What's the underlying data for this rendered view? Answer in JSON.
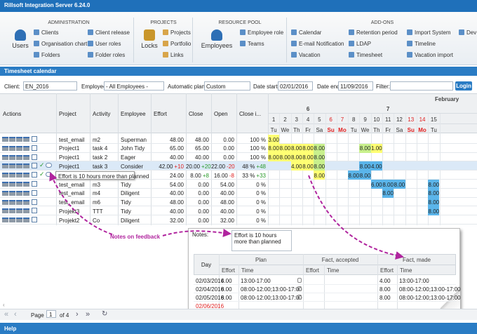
{
  "window_title": "Rillsoft Integration Server 6.24.0",
  "ribbon": [
    {
      "title": "ADMINISTRATION",
      "big": "Users",
      "columns": [
        [
          "Clients",
          "Organisation chart",
          "Folders"
        ],
        [
          "Client release",
          "User roles",
          "Folder roles"
        ]
      ]
    },
    {
      "title": "PROJECTS",
      "big": "Locks",
      "columns": [
        [
          "Projects",
          "Portfolio",
          "Links"
        ]
      ]
    },
    {
      "title": "RESOURCE POOL",
      "big": "Employees",
      "columns": [
        [
          "Employee role",
          "Teams"
        ]
      ]
    },
    {
      "title": "ADD-ONS",
      "columns": [
        [
          "Calendar",
          "E-mail Notification",
          "Vacation"
        ],
        [
          "Retention period",
          "LDAP",
          "Timesheet"
        ],
        [
          "Import System",
          "Timeline",
          "Vacation import"
        ],
        [
          "Dev"
        ]
      ]
    }
  ],
  "section_title": "Timesheet calendar",
  "filters": {
    "client_label": "Client:",
    "client": "EN_2016",
    "employee_label": "Employee:",
    "employee": "- All Employees -",
    "plant_label": "Automatic plant:",
    "plant": "Custom",
    "start_label": "Date start:",
    "start": "02/01/2016",
    "end_label": "Date end:",
    "end": "11/09/2016",
    "filter_label": "Filter:",
    "button": "Login"
  },
  "table": {
    "columns": [
      "Actions",
      "Project",
      "Activity",
      "Employee",
      "Effort",
      "Close",
      "Open",
      "Close i..."
    ],
    "month": "February",
    "weeks": [
      {
        "label": "6",
        "from": 1,
        "to": 7
      },
      {
        "label": "7",
        "from": 8,
        "to": 14
      }
    ],
    "days": [
      {
        "day": "1",
        "weekday": "Tu"
      },
      {
        "day": "2",
        "weekday": "We"
      },
      {
        "day": "3",
        "weekday": "Th"
      },
      {
        "day": "4",
        "weekday": "Fr"
      },
      {
        "day": "5",
        "weekday": "Sa"
      },
      {
        "day": "6",
        "weekday": "Su",
        "color": "#e02020"
      },
      {
        "day": "7",
        "weekday": "Mo",
        "color": "#e02020"
      },
      {
        "day": "8",
        "weekday": "Tu"
      },
      {
        "day": "9",
        "weekday": "We"
      },
      {
        "day": "10",
        "weekday": "Th"
      },
      {
        "day": "11",
        "weekday": "Fr"
      },
      {
        "day": "12",
        "weekday": "Sa"
      },
      {
        "day": "13",
        "weekday": "Su",
        "color": "#e02020"
      },
      {
        "day": "14",
        "weekday": "Mo",
        "color": "#e02020"
      },
      {
        "day": "15",
        "weekday": "Tu"
      }
    ],
    "rows": [
      {
        "project": "test_email",
        "activity": "m2",
        "employee": "Superman",
        "effort": "48.00",
        "close": "48.00",
        "open": "0.00",
        "closed": "100 %",
        "calendar": [
          {
            "text": "3.00",
            "color": "#ffff73"
          },
          null,
          null,
          null,
          null,
          null,
          null,
          null,
          null,
          null,
          null,
          null,
          null,
          null,
          null
        ]
      },
      {
        "project": "Project1",
        "activity": "task 4",
        "employee": "John Tidy",
        "effort": "65.00",
        "close": "65.00",
        "open": "0.00",
        "closed": "100 %",
        "calendar": [
          {
            "text": "8.00",
            "color": "#ffff73"
          },
          {
            "text": "8.00",
            "color": "#ffff73"
          },
          {
            "text": "8.00",
            "color": "#ffff73"
          },
          {
            "text": "8.00",
            "color": "#ffff73"
          },
          {
            "text": "8.00",
            "color": "#c8f08c"
          },
          null,
          null,
          null,
          {
            "text": "8.00",
            "color": "#c8f08c"
          },
          {
            "text": "1.00",
            "color": "#ffff73"
          },
          null,
          null,
          null,
          null,
          null
        ]
      },
      {
        "project": "Project1",
        "activity": "task 2",
        "employee": "Eager",
        "effort": "40.00",
        "close": "40.00",
        "open": "0.00",
        "closed": "100 %",
        "calendar": [
          {
            "text": "8.00",
            "color": "#ffff73"
          },
          {
            "text": "8.00",
            "color": "#ffff73"
          },
          {
            "text": "8.00",
            "color": "#ffff73"
          },
          {
            "text": "8.00",
            "color": "#ffff73"
          },
          {
            "text": "8.00",
            "color": "#c8f08c"
          },
          null,
          null,
          null,
          null,
          null,
          null,
          null,
          null,
          null,
          null
        ]
      },
      {
        "project": "Project1",
        "activity": "task 3",
        "employee": "Consider",
        "effort": "42.00",
        "effort_delta": "+10",
        "close": "20.00",
        "close_delta": "+20",
        "open": "22.00",
        "open_delta": "-20",
        "closed": "48 %",
        "closed_delta": "+48",
        "selected": true,
        "calendar": [
          null,
          null,
          {
            "text": "4.00",
            "color": "#ffff73"
          },
          {
            "text": "8.00",
            "color": "#ffff73"
          },
          {
            "text": "8.00",
            "color": "#c8f08c"
          },
          null,
          null,
          null,
          {
            "text": "8.00",
            "color": "#5bb5ea"
          },
          {
            "text": "4.00",
            "color": "#5bb5ea"
          },
          null,
          null,
          null,
          null,
          null
        ]
      },
      {
        "effort": "24.00",
        "close": "8.00",
        "close_delta": "+8",
        "open": "16.00",
        "open_delta": "-8",
        "closed": "33 %",
        "closed_delta": "+33",
        "calendar": [
          null,
          null,
          null,
          null,
          {
            "text": "8.00",
            "color": "#ffff73"
          },
          null,
          null,
          {
            "text": "8.00",
            "color": "#5bb5ea"
          },
          {
            "text": "8.00",
            "color": "#5bb5ea"
          },
          null,
          null,
          null,
          null,
          null,
          null
        ]
      },
      {
        "project": "test_email",
        "activity": "m3",
        "employee": "Tidy",
        "effort": "54.00",
        "close": "0.00",
        "open": "54.00",
        "closed": "0 %",
        "calendar": [
          null,
          null,
          null,
          null,
          null,
          null,
          null,
          null,
          null,
          {
            "text": "6.00",
            "color": "#5bb5ea"
          },
          {
            "text": "8.00",
            "color": "#5bb5ea"
          },
          {
            "text": "8.00",
            "color": "#5bb5ea"
          },
          null,
          null,
          {
            "text": "8.00",
            "color": "#5bb5ea"
          }
        ]
      },
      {
        "project": "test_email",
        "activity": "m4",
        "employee": "Diligent",
        "effort": "40.00",
        "close": "0.00",
        "open": "40.00",
        "closed": "0 %",
        "calendar": [
          null,
          null,
          null,
          null,
          null,
          null,
          null,
          null,
          null,
          null,
          {
            "text": "8.00",
            "color": "#5bb5ea"
          },
          null,
          null,
          null,
          {
            "text": "8.00",
            "color": "#5bb5ea"
          }
        ]
      },
      {
        "project": "test_email",
        "activity": "m6",
        "employee": "Tidy",
        "effort": "48.00",
        "close": "0.00",
        "open": "48.00",
        "closed": "0 %",
        "calendar": [
          null,
          null,
          null,
          null,
          null,
          null,
          null,
          null,
          null,
          null,
          null,
          null,
          null,
          null,
          {
            "text": "8.00",
            "color": "#5bb5ea"
          }
        ]
      },
      {
        "project": "Projekt3",
        "activity": "TTT",
        "employee": "Tidy",
        "effort": "40.00",
        "close": "0.00",
        "open": "40.00",
        "closed": "0 %",
        "calendar": [
          null,
          null,
          null,
          null,
          null,
          null,
          null,
          null,
          null,
          null,
          null,
          null,
          null,
          null,
          {
            "text": "8.00",
            "color": "#5bb5ea"
          }
        ]
      },
      {
        "project": "Projekt2",
        "activity": "Co",
        "employee": "Diligent",
        "effort": "32.00",
        "close": "0.00",
        "open": "32.00",
        "closed": "0 %",
        "calendar": [
          null,
          null,
          null,
          null,
          null,
          null,
          null,
          null,
          null,
          null,
          null,
          null,
          null,
          null,
          null
        ]
      }
    ],
    "tooltip": "Effort is 10 hours more than planned"
  },
  "annotation": "Notes on feedback",
  "popup": {
    "notes_label": "Notes:",
    "notes": "Effort is 10 hours more than planned",
    "day_header": "Day",
    "groups": [
      "Plan",
      "Fact, accepted",
      "Fact, made"
    ],
    "sub_headers": [
      "Effort",
      "Time"
    ],
    "rows": [
      {
        "cells": [
          "02/03/2016",
          "4.00",
          "13:00-17:00",
          null,
          null,
          "4.00",
          "13:00-17:00"
        ]
      },
      {
        "cells": [
          "02/04/2016",
          "8.00",
          "08:00-12:00;13:00-17:00",
          null,
          null,
          "8.00",
          "08:00-12:00;13:00-17:00"
        ]
      },
      {
        "cells": [
          "02/05/2016",
          "8.00",
          "08:00-12:00;13:00-17:00",
          null,
          null,
          "8.00",
          "08:00-12:00;13:00-17:00"
        ]
      },
      {
        "cells": [
          "02/06/2016"
        ],
        "color": "#e02020"
      }
    ]
  },
  "pager": {
    "page_label": "Page",
    "page": "1",
    "of": "of 4"
  },
  "footer": "Help"
}
